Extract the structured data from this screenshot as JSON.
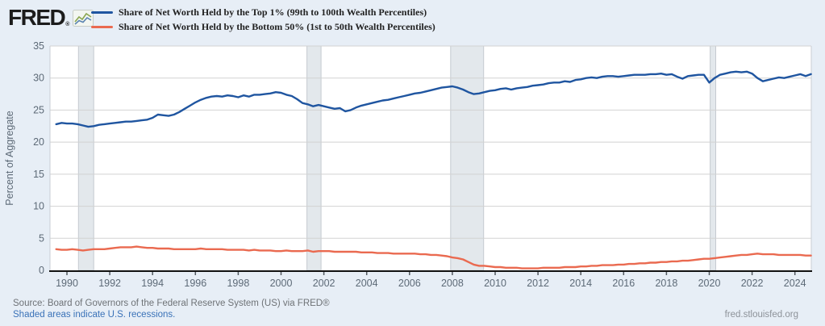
{
  "header": {
    "logo_text": "FRED",
    "logo_registered": "®"
  },
  "footer": {
    "source": "Source: Board of Governors of the Federal Reserve System (US) via FRED®",
    "recession_note": "Shaded areas indicate U.S. recessions.",
    "site": "fred.stlouisfed.org"
  },
  "chart_data": {
    "type": "line",
    "frequency": "quarterly",
    "ylabel": "Percent of Aggregate",
    "ylim": [
      0,
      35
    ],
    "y_ticks": [
      0,
      5,
      10,
      15,
      20,
      25,
      30,
      35
    ],
    "x_ticks": [
      1990,
      1992,
      1994,
      1996,
      1998,
      2000,
      2002,
      2004,
      2006,
      2008,
      2010,
      2012,
      2014,
      2016,
      2018,
      2020,
      2022,
      2024
    ],
    "x_start": 1989.5,
    "x_step": 0.25,
    "recessions": [
      [
        1990.54,
        1991.25
      ],
      [
        2001.21,
        2001.87
      ],
      [
        2007.92,
        2009.46
      ],
      [
        2020.04,
        2020.3
      ]
    ],
    "colors": {
      "recession_band": "#e3e8ec",
      "recession_edge": "#c5cad0",
      "gridline": "#d2d2d2",
      "plot_border": "#c9ced4",
      "axis": "#111111",
      "tick_text": "#5d6a77"
    },
    "series": [
      {
        "name": "Share of Net Worth Held by the Top 1% (99th to 100th Wealth Percentiles)",
        "color": "#1f55a0",
        "values": [
          22.8,
          23.0,
          22.9,
          22.9,
          22.8,
          22.6,
          22.4,
          22.5,
          22.7,
          22.8,
          22.9,
          23.0,
          23.1,
          23.2,
          23.2,
          23.3,
          23.4,
          23.5,
          23.8,
          24.3,
          24.2,
          24.1,
          24.3,
          24.7,
          25.2,
          25.7,
          26.2,
          26.6,
          26.9,
          27.1,
          27.2,
          27.1,
          27.3,
          27.2,
          27.0,
          27.3,
          27.1,
          27.4,
          27.4,
          27.5,
          27.6,
          27.8,
          27.7,
          27.4,
          27.2,
          26.7,
          26.1,
          25.9,
          25.6,
          25.8,
          25.6,
          25.4,
          25.2,
          25.3,
          24.8,
          25.0,
          25.4,
          25.7,
          25.9,
          26.1,
          26.3,
          26.5,
          26.6,
          26.8,
          27.0,
          27.2,
          27.4,
          27.6,
          27.7,
          27.9,
          28.1,
          28.3,
          28.5,
          28.6,
          28.7,
          28.5,
          28.2,
          27.8,
          27.5,
          27.6,
          27.8,
          28.0,
          28.1,
          28.3,
          28.4,
          28.2,
          28.4,
          28.5,
          28.6,
          28.8,
          28.9,
          29.0,
          29.2,
          29.3,
          29.3,
          29.5,
          29.4,
          29.7,
          29.8,
          30.0,
          30.1,
          30.0,
          30.2,
          30.3,
          30.3,
          30.2,
          30.3,
          30.4,
          30.5,
          30.5,
          30.5,
          30.6,
          30.6,
          30.7,
          30.5,
          30.6,
          30.2,
          29.9,
          30.3,
          30.4,
          30.5,
          30.5,
          29.3,
          30.0,
          30.5,
          30.7,
          30.9,
          31.0,
          30.9,
          31.0,
          30.7,
          30.0,
          29.5,
          29.7,
          29.9,
          30.1,
          30.0,
          30.2,
          30.4,
          30.6,
          30.3,
          30.6
        ]
      },
      {
        "name": "Share of Net Worth Held by the Bottom 50% (1st to 50th Wealth Percentiles)",
        "color": "#ea6a50",
        "values": [
          3.3,
          3.2,
          3.2,
          3.3,
          3.2,
          3.1,
          3.2,
          3.3,
          3.3,
          3.3,
          3.4,
          3.5,
          3.6,
          3.6,
          3.6,
          3.7,
          3.6,
          3.5,
          3.5,
          3.4,
          3.4,
          3.4,
          3.3,
          3.3,
          3.3,
          3.3,
          3.3,
          3.4,
          3.3,
          3.3,
          3.3,
          3.3,
          3.2,
          3.2,
          3.2,
          3.2,
          3.1,
          3.2,
          3.1,
          3.1,
          3.1,
          3.0,
          3.0,
          3.1,
          3.0,
          3.0,
          3.0,
          3.1,
          2.9,
          3.0,
          3.0,
          3.0,
          2.9,
          2.9,
          2.9,
          2.9,
          2.9,
          2.8,
          2.8,
          2.8,
          2.7,
          2.7,
          2.7,
          2.6,
          2.6,
          2.6,
          2.6,
          2.6,
          2.5,
          2.5,
          2.4,
          2.4,
          2.3,
          2.2,
          2.0,
          1.9,
          1.7,
          1.3,
          0.9,
          0.7,
          0.7,
          0.6,
          0.5,
          0.5,
          0.4,
          0.4,
          0.4,
          0.3,
          0.3,
          0.3,
          0.3,
          0.4,
          0.4,
          0.4,
          0.4,
          0.5,
          0.5,
          0.5,
          0.6,
          0.6,
          0.7,
          0.7,
          0.8,
          0.8,
          0.8,
          0.9,
          0.9,
          1.0,
          1.0,
          1.1,
          1.1,
          1.2,
          1.2,
          1.3,
          1.3,
          1.4,
          1.4,
          1.5,
          1.5,
          1.6,
          1.7,
          1.8,
          1.8,
          1.9,
          2.0,
          2.1,
          2.2,
          2.3,
          2.4,
          2.4,
          2.5,
          2.6,
          2.5,
          2.5,
          2.5,
          2.4,
          2.4,
          2.4,
          2.4,
          2.4,
          2.3,
          2.3
        ]
      }
    ]
  }
}
